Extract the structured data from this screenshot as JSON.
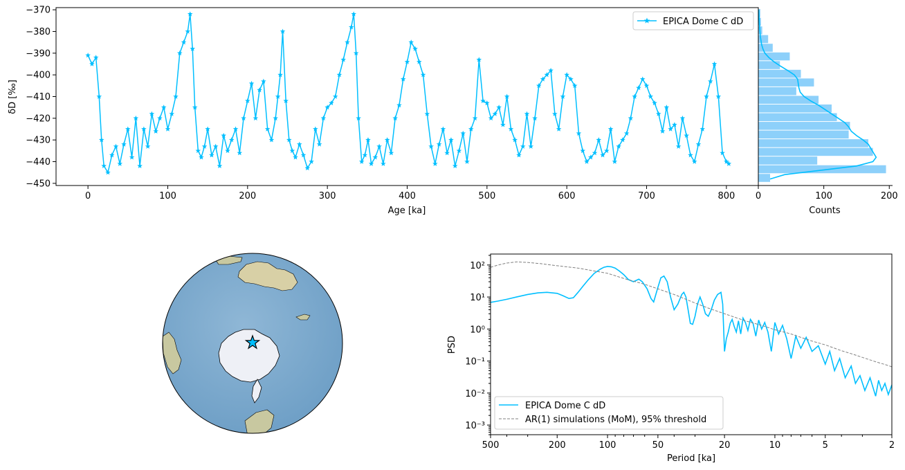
{
  "chart_data": [
    {
      "type": "line",
      "xlabel": "Age [ka]",
      "ylabel": "δD [‰]",
      "xlim": [
        -40,
        840
      ],
      "ylim": [
        -369,
        -451
      ],
      "y_inverted": true,
      "xticks": [
        "0",
        "100",
        "200",
        "300",
        "400",
        "500",
        "600",
        "700",
        "800"
      ],
      "yticks": [
        "−370",
        "−380",
        "−390",
        "−400",
        "−410",
        "−420",
        "−430",
        "−440",
        "−450"
      ],
      "marker": "star",
      "color": "#00BFFF",
      "legend": "top-right",
      "series": [
        {
          "name": "EPICA Dome C dD",
          "x": [
            0,
            5,
            10,
            14,
            17,
            20,
            25,
            30,
            35,
            40,
            45,
            50,
            55,
            60,
            65,
            70,
            75,
            80,
            85,
            90,
            95,
            100,
            105,
            110,
            115,
            120,
            125,
            128,
            131,
            134,
            138,
            142,
            146,
            150,
            155,
            160,
            165,
            170,
            175,
            180,
            185,
            190,
            195,
            200,
            205,
            210,
            215,
            220,
            225,
            230,
            235,
            238,
            241,
            244,
            248,
            252,
            256,
            260,
            265,
            270,
            275,
            280,
            285,
            290,
            295,
            300,
            305,
            310,
            315,
            320,
            325,
            330,
            333,
            336,
            339,
            343,
            347,
            351,
            355,
            360,
            365,
            370,
            375,
            380,
            385,
            390,
            395,
            400,
            405,
            410,
            415,
            420,
            425,
            430,
            435,
            440,
            445,
            450,
            455,
            460,
            465,
            470,
            475,
            480,
            485,
            490,
            495,
            500,
            505,
            510,
            515,
            520,
            525,
            530,
            535,
            540,
            545,
            550,
            555,
            560,
            565,
            570,
            575,
            580,
            585,
            590,
            595,
            600,
            605,
            610,
            615,
            620,
            625,
            630,
            635,
            640,
            645,
            650,
            655,
            660,
            665,
            670,
            675,
            680,
            685,
            690,
            695,
            700,
            705,
            710,
            715,
            720,
            725,
            730,
            735,
            740,
            745,
            750,
            755,
            760,
            765,
            770,
            775,
            780,
            785,
            790,
            795,
            800,
            803
          ],
          "y": [
            -391,
            -395,
            -392,
            -410,
            -430,
            -442,
            -445,
            -437,
            -433,
            -441,
            -432,
            -425,
            -438,
            -420,
            -442,
            -425,
            -433,
            -418,
            -426,
            -420,
            -415,
            -425,
            -418,
            -410,
            -390,
            -385,
            -380,
            -372,
            -388,
            -415,
            -435,
            -438,
            -433,
            -425,
            -437,
            -433,
            -442,
            -428,
            -435,
            -430,
            -425,
            -436,
            -420,
            -412,
            -404,
            -420,
            -407,
            -403,
            -425,
            -430,
            -420,
            -410,
            -400,
            -380,
            -412,
            -430,
            -435,
            -438,
            -432,
            -437,
            -443,
            -440,
            -425,
            -432,
            -420,
            -415,
            -413,
            -410,
            -400,
            -393,
            -385,
            -378,
            -372,
            -390,
            -420,
            -440,
            -437,
            -430,
            -441,
            -438,
            -433,
            -441,
            -430,
            -436,
            -420,
            -414,
            -402,
            -394,
            -385,
            -388,
            -394,
            -400,
            -418,
            -433,
            -441,
            -432,
            -425,
            -436,
            -430,
            -442,
            -435,
            -427,
            -440,
            -425,
            -420,
            -393,
            -412,
            -413,
            -420,
            -418,
            -415,
            -423,
            -410,
            -425,
            -430,
            -437,
            -433,
            -418,
            -433,
            -420,
            -405,
            -402,
            -400,
            -398,
            -418,
            -425,
            -410,
            -400,
            -402,
            -405,
            -427,
            -435,
            -440,
            -438,
            -436,
            -430,
            -437,
            -435,
            -425,
            -440,
            -433,
            -430,
            -427,
            -420,
            -410,
            -406,
            -402,
            -405,
            -410,
            -413,
            -418,
            -426,
            -415,
            -425,
            -423,
            -433,
            -420,
            -428,
            -437,
            -440,
            -432,
            -425,
            -410,
            -403,
            -395,
            -410,
            -436,
            -440,
            -441
          ]
        }
      ]
    },
    {
      "type": "bar",
      "orientation": "horizontal",
      "xlabel": "Counts",
      "ylabel": "",
      "xlim": [
        0,
        205
      ],
      "ylim": [
        -369,
        -451
      ],
      "xticks": [
        "0",
        "100",
        "200"
      ],
      "color": "#87CEFA",
      "bins": [
        -447.5,
        -443.5,
        -439.5,
        -435.5,
        -431.5,
        -427.5,
        -423.5,
        -419.5,
        -415.5,
        -411.5,
        -407.5,
        -403.5,
        -399.5,
        -395.5,
        -391.5,
        -387.5,
        -383.5,
        -379.5,
        -375.5,
        -371.5
      ],
      "values": [
        18,
        195,
        90,
        175,
        168,
        138,
        140,
        120,
        112,
        92,
        58,
        85,
        65,
        33,
        48,
        22,
        15,
        6,
        4,
        3
      ],
      "kde": {
        "y": [
          -448,
          -446,
          -444,
          -442,
          -440,
          -438,
          -436,
          -434,
          -432,
          -430,
          -428,
          -426,
          -424,
          -422,
          -420,
          -418,
          -416,
          -414,
          -412,
          -410,
          -408,
          -406,
          -404,
          -402,
          -400,
          -398,
          -396,
          -394,
          -392,
          -390,
          -388,
          -386,
          -384,
          -382,
          -380,
          -378,
          -376,
          -374,
          -372,
          -370
        ],
        "x": [
          18,
          40,
          95,
          150,
          175,
          180,
          176,
          172,
          168,
          160,
          150,
          142,
          138,
          132,
          122,
          112,
          102,
          92,
          80,
          70,
          64,
          62,
          61,
          60,
          55,
          45,
          34,
          24,
          16,
          10,
          7,
          5,
          4,
          3,
          2.5,
          2,
          1.6,
          1.3,
          1,
          0.8
        ]
      }
    },
    {
      "type": "map",
      "projection": "orthographic-south-polar",
      "marker": "star",
      "marker_color": "#00BFFF"
    },
    {
      "type": "line",
      "xlabel": "Period [ka]",
      "ylabel": "PSD",
      "x_scale": "log-reversed",
      "y_scale": "log",
      "xlim": [
        500,
        2
      ],
      "ylim": [
        0.0005,
        220
      ],
      "xticks": [
        "500",
        "200",
        "100",
        "50",
        "20",
        "10",
        "5",
        "2"
      ],
      "yticks": [
        "10⁻³",
        "10⁻²",
        "10⁻¹",
        "10⁰",
        "10¹",
        "10²"
      ],
      "legend": "lower-left",
      "series": [
        {
          "name": "EPICA Dome C dD",
          "color": "#00BFFF",
          "x": [
            500,
            450,
            400,
            350,
            300,
            260,
            230,
            200,
            185,
            170,
            160,
            150,
            140,
            130,
            120,
            110,
            105,
            100,
            95,
            90,
            85,
            80,
            75,
            70,
            65,
            62,
            58,
            55,
            53,
            50,
            48,
            46,
            44,
            42,
            40,
            38,
            36,
            35,
            34,
            33,
            32,
            31,
            30,
            29,
            28,
            27,
            26,
            25,
            24,
            23,
            22,
            21,
            20.5,
            20,
            19.5,
            19,
            18.5,
            18,
            17.5,
            17,
            16.5,
            16,
            15.5,
            15,
            14.5,
            14,
            13.5,
            13,
            12.5,
            12,
            11.5,
            11,
            10.5,
            10,
            9.5,
            9,
            8.5,
            8,
            7.5,
            7,
            6.5,
            6,
            5.5,
            5,
            4.7,
            4.4,
            4.1,
            3.8,
            3.5,
            3.3,
            3.1,
            2.9,
            2.7,
            2.5,
            2.4,
            2.3,
            2.2,
            2.1,
            2
          ],
          "y": [
            6.8,
            7.5,
            8.5,
            10,
            12,
            13.5,
            14,
            13,
            11,
            9,
            9.5,
            14,
            22,
            35,
            55,
            75,
            85,
            90,
            88,
            80,
            65,
            50,
            35,
            30,
            36,
            30,
            18,
            9,
            7,
            20,
            40,
            45,
            30,
            10,
            4,
            6,
            12,
            14,
            10,
            4,
            1.5,
            1.4,
            2.5,
            6,
            10,
            6,
            3,
            2.5,
            4,
            8,
            12,
            14,
            6,
            0.2,
            0.5,
            0.8,
            1.5,
            2,
            1.2,
            0.8,
            1.8,
            0.7,
            2.2,
            1.6,
            0.9,
            2,
            1.5,
            0.6,
            1.9,
            1,
            1.6,
            0.8,
            0.2,
            1.6,
            0.7,
            1.3,
            0.5,
            0.12,
            0.6,
            0.25,
            0.55,
            0.2,
            0.3,
            0.08,
            0.2,
            0.05,
            0.12,
            0.03,
            0.07,
            0.02,
            0.035,
            0.012,
            0.03,
            0.008,
            0.025,
            0.012,
            0.02,
            0.009,
            0.018
          ]
        },
        {
          "name": "AR(1) simulations (MoM), 95% threshold",
          "color": "#808080",
          "x": [
            500,
            450,
            400,
            350,
            300,
            250,
            200,
            150,
            120,
            100,
            80,
            60,
            50,
            40,
            30,
            25,
            20,
            15,
            12,
            10,
            8,
            7,
            6,
            5,
            4,
            3.5,
            3,
            2.5,
            2.2,
            2
          ],
          "y": [
            85,
            100,
            115,
            125,
            120,
            110,
            95,
            80,
            65,
            55,
            38,
            25,
            18,
            12,
            6.5,
            4.5,
            3,
            1.8,
            1.3,
            0.95,
            0.7,
            0.55,
            0.42,
            0.32,
            0.21,
            0.17,
            0.13,
            0.095,
            0.078,
            0.066
          ]
        }
      ]
    }
  ],
  "legends": {
    "ts": "EPICA Dome C dD",
    "psd_line": "EPICA Dome C dD",
    "psd_ar1": "AR(1) simulations (MoM), 95% threshold"
  }
}
